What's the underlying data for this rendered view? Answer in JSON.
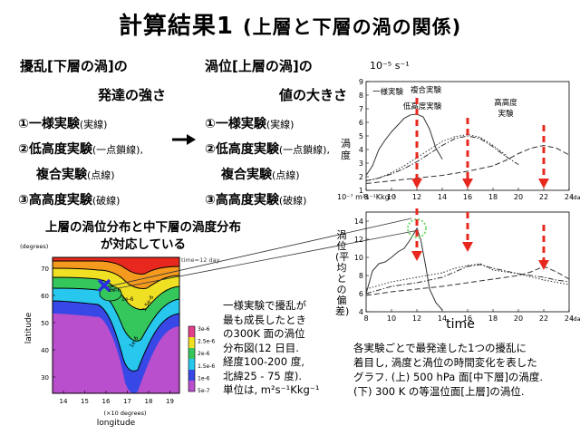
{
  "slide": {
    "title_main": "計算結果1",
    "title_sub": "(上層と下層の渦の関係)"
  },
  "left_column": {
    "header": "擾乱[下層の渦]の",
    "subheader": "発達の強さ",
    "items": [
      {
        "label": "①一様実験",
        "note": "(実線)"
      },
      {
        "label": "②低高度実験",
        "note": "(一点鎖線),"
      },
      {
        "label": "複合実験",
        "note": "(点線)"
      },
      {
        "label": "③高高度実験",
        "note": "(破線)"
      }
    ]
  },
  "right_column": {
    "header": "渦位[上層の渦]の",
    "subheader": "値の大きさ",
    "items": [
      {
        "label": "①一様実験",
        "note": "(実線)"
      },
      {
        "label": "②低高度実験",
        "note": "(一点鎖線),"
      },
      {
        "label": "複合実験",
        "note": "(点線)"
      },
      {
        "label": "③高高度実験",
        "note": "(破線)"
      }
    ]
  },
  "map_panel": {
    "heading_line1": "上層の渦位分布と中下層の渦度分布",
    "heading_line2": "が対応している",
    "y_unit": "(degrees)",
    "y_label": "latitude",
    "y_ticks": [
      "70",
      "60",
      "50",
      "40",
      "30"
    ],
    "x_ticks": [
      "14",
      "15",
      "16",
      "17",
      "18",
      "19"
    ],
    "x_unit": "(×10 degrees)",
    "x_label": "longitude",
    "time_label": "time=12 day",
    "contour_labels": [
      "2e-6",
      "1e-6",
      "1.5e-6",
      "1e-6"
    ],
    "colorbar_labels": [
      "3e-6",
      "2.5e-6",
      "2e-6",
      "1.5e-6",
      "1e-6",
      "5e-7"
    ],
    "colors": {
      "purple": "#b94fcc",
      "blue": "#3848e6",
      "cyan": "#27c7ee",
      "green": "#36c75c",
      "yellow": "#f0e024",
      "orange": "#f49a1e",
      "red": "#e8281e",
      "magenta": "#e0408a"
    }
  },
  "map_description": [
    "一様実験で擾乱が",
    "最も成長したとき",
    "の300K 面の渦位",
    "分布図(12 日目.",
    "経度100-200 度,",
    "北緯25 - 75 度).",
    "単位は, m²s⁻¹Kkg⁻¹"
  ],
  "upper_graph": {
    "unit": "10⁻⁵ s⁻¹",
    "y_label": "渦度",
    "y_ticks": [
      "9",
      "8",
      "7",
      "6",
      "5",
      "4",
      "3",
      "2",
      "1"
    ],
    "x_ticks": [
      "8",
      "10",
      "12",
      "14",
      "16",
      "18",
      "20",
      "22",
      "24"
    ],
    "x_unit": "(day)",
    "annotations": [
      "一様実験",
      "複合実験",
      "低高度実験",
      "高高度",
      "実験"
    ],
    "chart_data": {
      "type": "line",
      "title": "",
      "xlabel": "(day)",
      "ylabel": "渦度 (10⁻⁵ s⁻¹)",
      "xlim": [
        8,
        24
      ],
      "ylim": [
        1,
        9
      ],
      "series": [
        {
          "name": "一様実験",
          "style": "solid",
          "x": [
            8,
            8.5,
            9,
            9.5,
            10,
            10.5,
            11,
            11.5,
            12,
            12.5,
            13,
            13.5,
            14
          ],
          "y": [
            2.1,
            2.8,
            4.0,
            4.7,
            5.3,
            5.8,
            6.3,
            6.55,
            6.6,
            6.4,
            5.5,
            4.1,
            3.3
          ]
        },
        {
          "name": "低高度実験",
          "style": "dashdot",
          "x": [
            8,
            9,
            10,
            11,
            12,
            13,
            14,
            15,
            16,
            17,
            18,
            19,
            20
          ],
          "y": [
            1.7,
            1.9,
            2.2,
            2.6,
            3.1,
            3.7,
            4.3,
            4.8,
            5.0,
            4.8,
            4.2,
            3.5,
            2.9
          ]
        },
        {
          "name": "複合実験",
          "style": "dotted",
          "x": [
            8,
            9,
            10,
            11,
            12,
            13,
            14,
            15,
            16,
            17,
            18,
            19
          ],
          "y": [
            1.7,
            1.9,
            2.3,
            2.8,
            3.4,
            4.0,
            4.6,
            4.95,
            5.1,
            4.9,
            4.3,
            3.6
          ]
        },
        {
          "name": "高高度実験",
          "style": "dashed",
          "x": [
            8,
            10,
            12,
            14,
            16,
            18,
            19,
            20,
            21,
            22,
            23,
            24
          ],
          "y": [
            1.5,
            1.7,
            1.9,
            2.1,
            2.4,
            2.8,
            3.2,
            3.7,
            4.1,
            4.3,
            4.1,
            3.6
          ]
        }
      ]
    }
  },
  "lower_graph": {
    "unit": "10⁻⁷ m²s⁻¹Kkg⁻¹",
    "y_label": "渦位(平均との偏差)",
    "y_ticks": [
      "14",
      "12",
      "10",
      "8",
      "6",
      "4"
    ],
    "x_ticks": [
      "8",
      "10",
      "12",
      "14",
      "16",
      "18",
      "20",
      "22",
      "24"
    ],
    "x_unit": "(day)",
    "x_label": "time",
    "chart_data": {
      "type": "line",
      "title": "",
      "xlabel": "time (day)",
      "ylabel": "渦位(平均との偏差) (10⁻⁷ m²s⁻¹Kkg⁻¹)",
      "xlim": [
        8,
        24
      ],
      "ylim": [
        4,
        15
      ],
      "series": [
        {
          "name": "一様実験",
          "style": "solid",
          "x": [
            8,
            8.5,
            9,
            9.5,
            10,
            10.5,
            11,
            11.5,
            12,
            12.3,
            12.7,
            13,
            13.5,
            14
          ],
          "y": [
            6.0,
            8.5,
            9.3,
            9.5,
            10.0,
            10.6,
            11.0,
            12.0,
            13.2,
            12.0,
            9.0,
            6.5,
            5.0,
            4.2
          ]
        },
        {
          "name": "低高度実験",
          "style": "dashdot",
          "x": [
            8,
            10,
            12,
            14,
            16,
            17,
            18,
            20,
            22,
            23,
            24
          ],
          "y": [
            6.0,
            6.8,
            7.2,
            7.8,
            9.0,
            9.2,
            8.8,
            8.2,
            7.8,
            7.5,
            7.3
          ]
        },
        {
          "name": "複合実験",
          "style": "dotted",
          "x": [
            8,
            10,
            12,
            14,
            15,
            16,
            17,
            18,
            20,
            22,
            24
          ],
          "y": [
            6.5,
            7.3,
            7.8,
            8.3,
            8.8,
            9.1,
            9.3,
            8.6,
            8.2,
            7.5,
            7.0
          ]
        },
        {
          "name": "高高度実験",
          "style": "dashed",
          "x": [
            8,
            10,
            12,
            14,
            16,
            18,
            20,
            21,
            22,
            23,
            24
          ],
          "y": [
            5.8,
            6.2,
            6.5,
            6.8,
            7.2,
            7.6,
            8.0,
            8.4,
            9.0,
            8.4,
            7.6
          ]
        }
      ]
    }
  },
  "caption": [
    "各実験ごとで最発達した1つの擾乱に",
    "着目し, 渦度と渦位の時間変化を表した",
    "グラフ. (上) 500 hPa 面[中下層]の渦度.",
    "(下) 300 K の等温位面[上層]の渦位."
  ],
  "arrow_days": [
    12,
    16,
    22
  ]
}
